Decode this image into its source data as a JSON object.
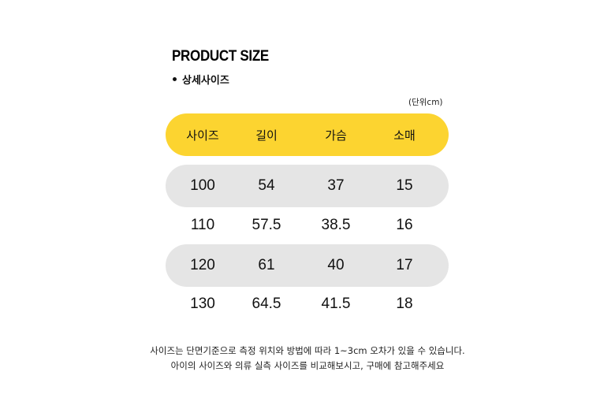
{
  "title": "PRODUCT SIZE",
  "subtitle": "상세사이즈",
  "unit_note": "(단위cm)",
  "table": {
    "headers": [
      "사이즈",
      "길이",
      "가슴",
      "소매"
    ],
    "rows": [
      [
        "100",
        "54",
        "37",
        "15"
      ],
      [
        "110",
        "57.5",
        "38.5",
        "16"
      ],
      [
        "120",
        "61",
        "40",
        "17"
      ],
      [
        "130",
        "64.5",
        "41.5",
        "18"
      ]
    ]
  },
  "notes": [
    "사이즈는 단면기준으로 측정 위치와 방법에 따라 1~3cm 오차가 있을 수 있습니다.",
    "아이의 사이즈와 의류 실측 사이즈를 비교해보시고, 구매에 참고해주세요"
  ],
  "colors": {
    "header_bg": "#fcd430",
    "shaded_row_bg": "#e5e5e5"
  }
}
